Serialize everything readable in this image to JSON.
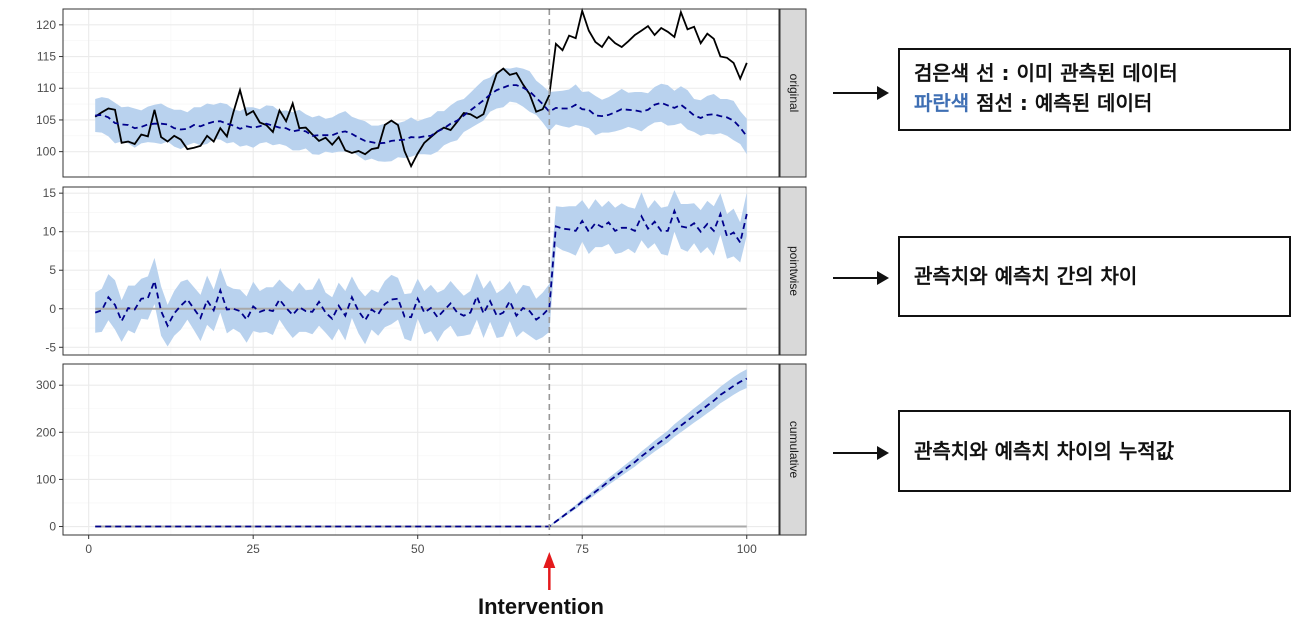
{
  "chart_data": {
    "type": "line",
    "facets": [
      {
        "key": "original",
        "strip_label": "original",
        "ylim": [
          96,
          122.5
        ],
        "yticks": [
          100,
          105,
          110,
          115,
          120
        ],
        "observed": [
          105.5,
          106.2,
          106.8,
          106.6,
          101.4,
          101.6,
          101.2,
          102.7,
          102.4,
          106.6,
          102.3,
          101.6,
          102.5,
          101.9,
          100.4,
          100.6,
          100.9,
          102.5,
          101.6,
          103.7,
          102.4,
          106.2,
          109.7,
          105.8,
          106.4,
          104.6,
          104.2,
          103.1,
          106.5,
          104.8,
          107.6,
          103.7,
          103.8,
          102.7,
          101.7,
          102.2,
          101.1,
          102.3,
          100.2,
          99.8,
          100.1,
          99.6,
          100.4,
          100.6,
          104.2,
          104.9,
          104.2,
          100.1,
          97.7,
          99.7,
          101.4,
          102.3,
          103.2,
          103.8,
          103.4,
          104.7,
          106.1,
          105.9,
          105.3,
          105.9,
          109.2,
          112.3,
          113.1,
          112.1,
          112.4,
          110.6,
          109.1,
          106.3,
          106.7,
          108.9,
          117.0,
          116.0,
          118.3,
          117.9,
          122.2,
          119.1,
          117.3,
          116.5,
          118.1,
          117.1,
          116.5,
          117.4,
          118.4,
          119.1,
          119.8,
          118.4,
          119.5,
          118.9,
          118.1,
          122.0,
          119.3,
          119.7,
          117.1,
          118.6,
          117.8,
          115.0,
          114.8,
          114.0,
          111.5,
          114.0
        ],
        "predicted": [
          105.7,
          105.8,
          105.4,
          104.5,
          104.3,
          104.2,
          103.7,
          103.9,
          104.3,
          104.4,
          104.4,
          104.3,
          103.7,
          103.5,
          103.6,
          104.2,
          104.0,
          104.4,
          104.7,
          104.8,
          104.4,
          104.1,
          103.6,
          104.0,
          103.8,
          104.0,
          104.4,
          104.1,
          103.8,
          103.7,
          103.2,
          103.4,
          103.2,
          102.5,
          102.6,
          102.6,
          102.6,
          103.0,
          103.2,
          102.8,
          102.2,
          101.7,
          101.5,
          101.3,
          101.4,
          101.7,
          101.8,
          101.9,
          102.3,
          102.2,
          102.4,
          102.5,
          103.2,
          103.7,
          104.4,
          104.9,
          105.7,
          106.5,
          107.3,
          108.1,
          109.0,
          109.7,
          110.1,
          110.5,
          110.5,
          110.1,
          109.5,
          108.5,
          107.5,
          106.3,
          106.9,
          106.8,
          106.8,
          107.4,
          106.7,
          106.6,
          105.7,
          105.6,
          105.8,
          106.2,
          106.7,
          106.6,
          106.5,
          106.3,
          106.6,
          107.4,
          107.7,
          107.3,
          106.9,
          107.4,
          106.6,
          105.7,
          105.3,
          105.8,
          105.9,
          105.6,
          105.4,
          104.9,
          103.8,
          102.4
        ]
      },
      {
        "key": "pointwise",
        "strip_label": "pointwise",
        "ylim": [
          -6,
          15.8
        ],
        "yticks": [
          -5,
          0,
          5,
          10,
          15
        ],
        "reference": 0,
        "predicted": [
          -0.5,
          -0.2,
          1.5,
          0.5,
          -1.6,
          0.1,
          -0.1,
          1.3,
          1.4,
          3.6,
          -0.3,
          -2.2,
          -0.6,
          0.4,
          1.2,
          0.0,
          -1.2,
          1.1,
          -0.2,
          2.4,
          -0.1,
          0.0,
          -0.3,
          -1.4,
          0.3,
          -0.4,
          -0.1,
          -0.3,
          1.2,
          0.1,
          -0.8,
          0.2,
          -0.3,
          -0.4,
          0.9,
          -0.5,
          -1.3,
          0.4,
          -0.9,
          1.5,
          -0.3,
          -1.5,
          -0.1,
          -0.7,
          0.6,
          1.2,
          1.3,
          -1.0,
          -1.1,
          1.3,
          -0.5,
          0.1,
          -1.1,
          -0.2,
          0.7,
          -0.5,
          -0.9,
          -0.5,
          1.6,
          -0.6,
          1.0,
          -0.9,
          -0.5,
          1.0,
          -0.9,
          0.1,
          -0.3,
          -1.4,
          -0.8,
          0.1,
          10.7,
          10.4,
          10.3,
          10.1,
          11.4,
          10.0,
          11.1,
          10.6,
          11.2,
          10.1,
          10.5,
          10.5,
          10.1,
          12.0,
          10.4,
          11.3,
          10.1,
          10.1,
          12.7,
          10.7,
          10.5,
          11.1,
          10.0,
          11.0,
          10.1,
          12.3,
          9.4,
          9.9,
          8.6,
          12.3
        ]
      },
      {
        "key": "cumulative",
        "strip_label": "cumulative",
        "ylim": [
          -18,
          345
        ],
        "yticks": [
          0,
          100,
          200,
          300
        ],
        "reference": 0,
        "predicted": [
          0,
          0,
          0,
          0,
          0,
          0,
          0,
          0,
          0,
          0,
          0,
          0,
          0,
          0,
          0,
          0,
          0,
          0,
          0,
          0,
          0,
          0,
          0,
          0,
          0,
          0,
          0,
          0,
          0,
          0,
          0,
          0,
          0,
          0,
          0,
          0,
          0,
          0,
          0,
          0,
          0,
          0,
          0,
          0,
          0,
          0,
          0,
          0,
          0,
          0,
          0,
          0,
          0,
          0,
          0,
          0,
          0,
          0,
          0,
          0,
          0,
          0,
          0,
          0,
          0,
          0,
          0,
          0,
          0,
          0,
          10.7,
          21.1,
          31.4,
          41.5,
          52.9,
          62.9,
          74.0,
          84.6,
          95.8,
          105.9,
          116.4,
          126.9,
          137.0,
          149.0,
          159.4,
          170.7,
          180.8,
          190.9,
          203.6,
          214.3,
          224.8,
          235.9,
          245.9,
          256.9,
          267.0,
          279.3,
          288.7,
          298.6,
          307.2,
          314.0
        ]
      }
    ],
    "x": {
      "start": 1,
      "end": 100,
      "xlim": [
        -3.9,
        104.9
      ],
      "ticks": [
        0,
        25,
        50,
        75,
        100
      ],
      "xlabel": "",
      "intervention_at": 70
    },
    "band_halfwidth": 2.9,
    "colors": {
      "observed": "#000000",
      "predicted": "#00008b",
      "band": "#b9d2ee",
      "intervention": "#999999",
      "reference": "#a9a9a9",
      "arrow_red": "#e41a1c",
      "grid_major": "#ebebeb",
      "grid_minor": "#f5f5f5",
      "strip": "#d9d9d9"
    }
  },
  "annotations": {
    "legend_line1": "검은색 선 : 이미 관측된 데이터",
    "legend_line2_blue": "파란색",
    "legend_line2_rest": " 점선 : 예측된 데이터",
    "pointwise_note": "관측치와 예측치 간의 차이",
    "cumulative_note": "관측치와 예측치 차이의 누적값",
    "intervention_label": "Intervention"
  }
}
